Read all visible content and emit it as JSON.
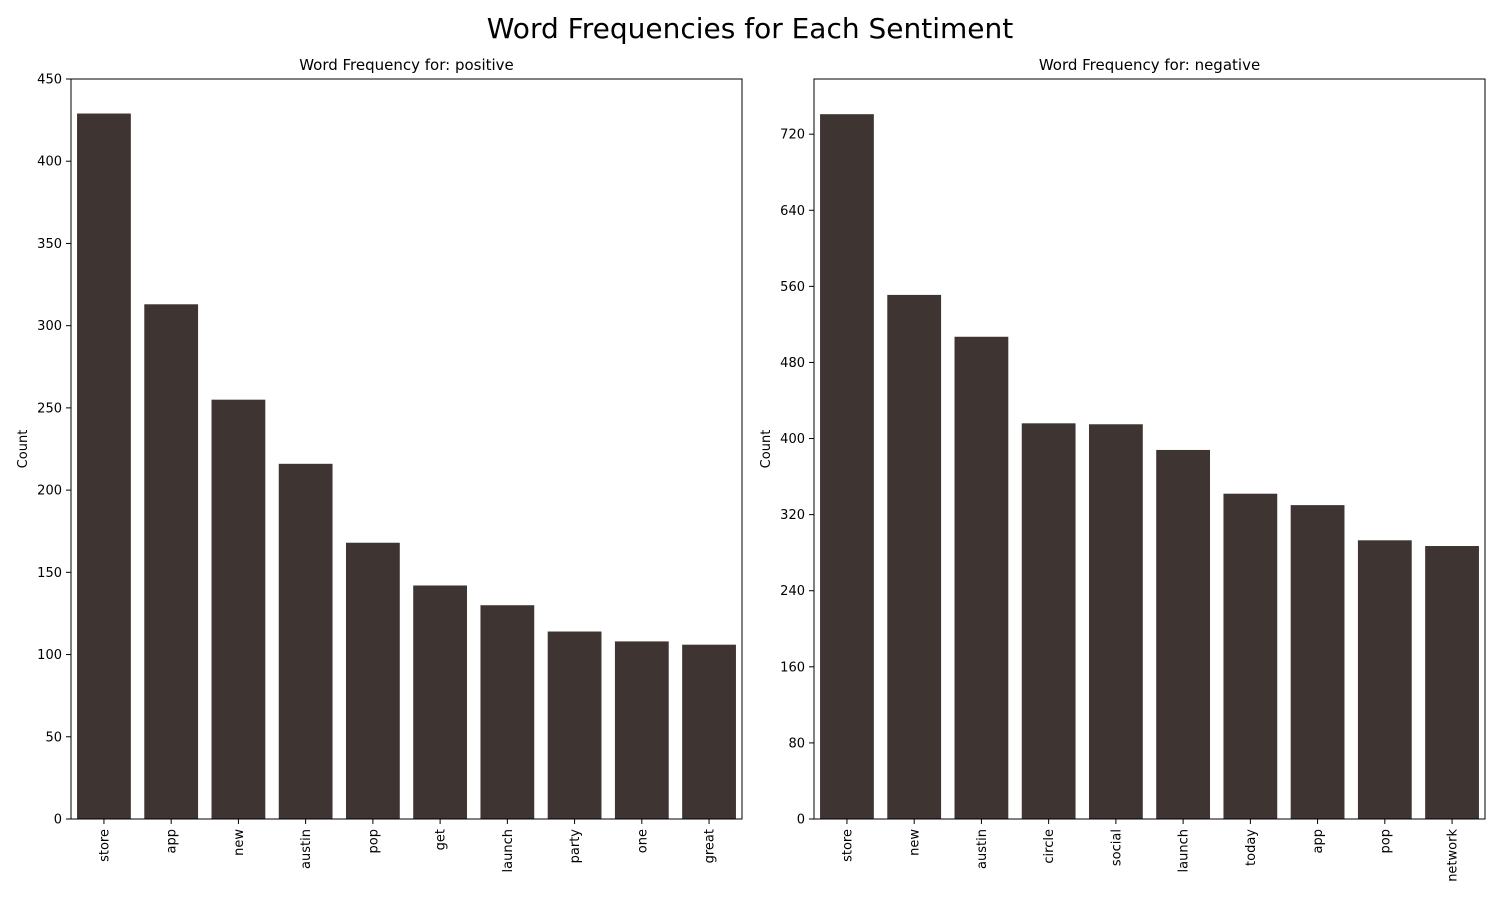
{
  "suptitle": "Word Frequencies for Each Sentiment",
  "bar_color": "#3e3432",
  "chart_data": [
    {
      "type": "bar",
      "title": "Word Frequency for: positive",
      "xlabel": "",
      "ylabel": "Count",
      "categories": [
        "store",
        "app",
        "new",
        "austin",
        "pop",
        "get",
        "launch",
        "party",
        "one",
        "great"
      ],
      "values": [
        429,
        313,
        255,
        216,
        168,
        142,
        130,
        114,
        108,
        106
      ],
      "ylim": [
        0,
        450
      ],
      "yticks": [
        0,
        50,
        100,
        150,
        200,
        250,
        300,
        350,
        400,
        450
      ],
      "grid": false
    },
    {
      "type": "bar",
      "title": "Word Frequency for: negative",
      "xlabel": "",
      "ylabel": "Count",
      "categories": [
        "store",
        "new",
        "austin",
        "circle",
        "social",
        "launch",
        "today",
        "app",
        "pop",
        "network"
      ],
      "values": [
        741,
        551,
        507,
        416,
        415,
        388,
        342,
        330,
        293,
        287
      ],
      "ylim": [
        0,
        778
      ],
      "yticks": [
        0,
        80,
        160,
        240,
        320,
        400,
        480,
        560,
        640,
        720
      ],
      "grid": false
    }
  ]
}
